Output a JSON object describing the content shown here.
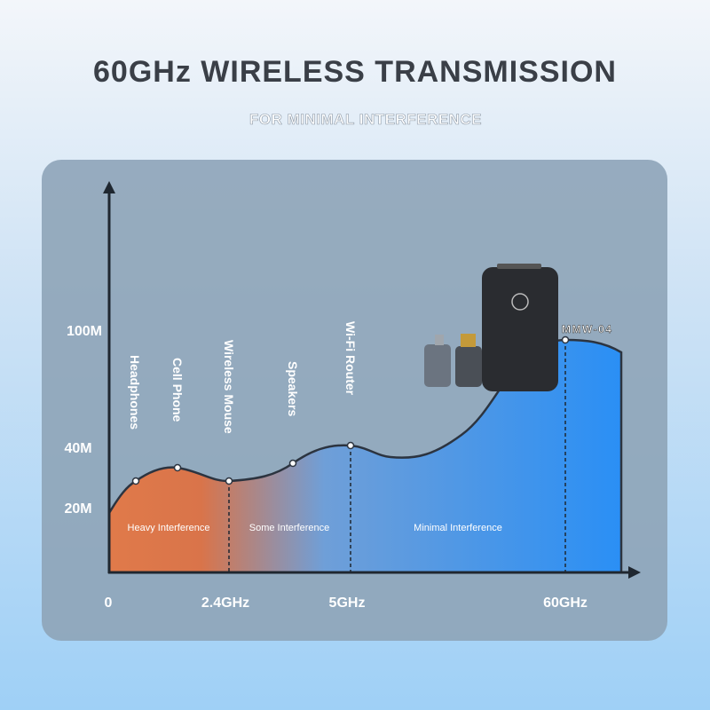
{
  "header": {
    "title": "60GHz WIRELESS TRANSMISSION",
    "subtitle": "FOR MINIMAL INTERFERENCE"
  },
  "diagram": {
    "y_labels": [
      "100M",
      "40M",
      "20M"
    ],
    "x_labels": [
      "0",
      "2.4GHz",
      "5GHz",
      "60GHz"
    ],
    "devices": [
      "Headphones",
      "Cell Phone",
      "Wireless Mouse",
      "Speakers",
      "Wi-Fi Router"
    ],
    "product": "MMW-04",
    "zones": [
      "Heavy Interference",
      "Some Interference",
      "Minimal Interference"
    ]
  }
}
